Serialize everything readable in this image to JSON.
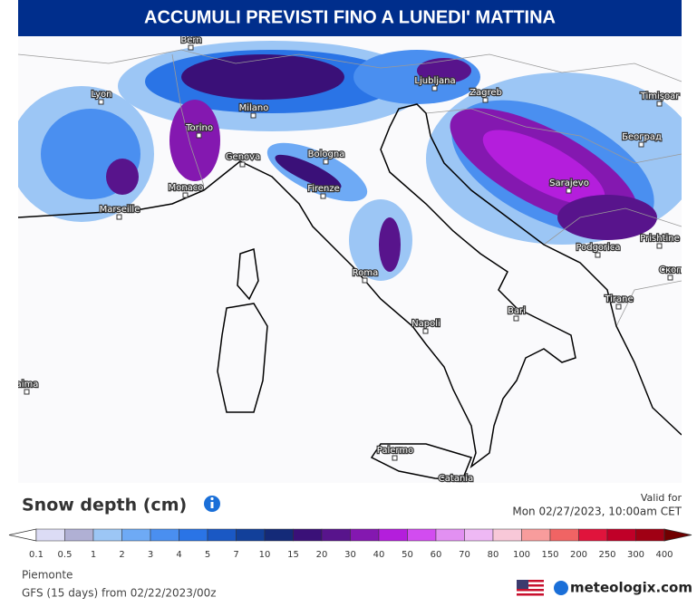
{
  "header": {
    "title": "ACCUMULI PREVISTI FINO A LUNEDI' MATTINA"
  },
  "map": {
    "cities": [
      "Bern",
      "Lyon",
      "Milano",
      "Torino",
      "Genova",
      "Monaco",
      "Marseille",
      "Bologna",
      "Firenze",
      "Roma",
      "Napoli",
      "Bari",
      "Palermo",
      "Catania",
      "Ljubljana",
      "Zagreb",
      "Sarajevo",
      "Podgorica",
      "Tirane",
      "Timișoar",
      "Београд",
      "Prishtine",
      "Скоп",
      "aima"
    ]
  },
  "legend": {
    "title": "Snow depth (cm)",
    "valid_label": "Valid for",
    "valid_time": "Mon 02/27/2023, 10:00am CET",
    "steps": [
      "0.1",
      "0.5",
      "1",
      "2",
      "3",
      "4",
      "5",
      "7",
      "10",
      "15",
      "20",
      "30",
      "40",
      "50",
      "60",
      "70",
      "80",
      "100",
      "150",
      "200",
      "250",
      "300",
      "400"
    ],
    "colors": [
      "#dcdcf5",
      "#b0b0d4",
      "#9cc6f5",
      "#6eaaf5",
      "#4a8ff0",
      "#2a74e6",
      "#1a58c4",
      "#12409a",
      "#142a78",
      "#3a1078",
      "#58148c",
      "#8418b0",
      "#b41edc",
      "#d24cf0",
      "#e290f2",
      "#eeb8f4",
      "#f8c8d8",
      "#f89c9c",
      "#f06464",
      "#e0143c",
      "#c00028",
      "#a00014",
      "#700000"
    ]
  },
  "footer": {
    "location": "Piemonte",
    "model": "GFS (15 days) from 02/22/2023/00z",
    "brand": "meteologix.com"
  }
}
